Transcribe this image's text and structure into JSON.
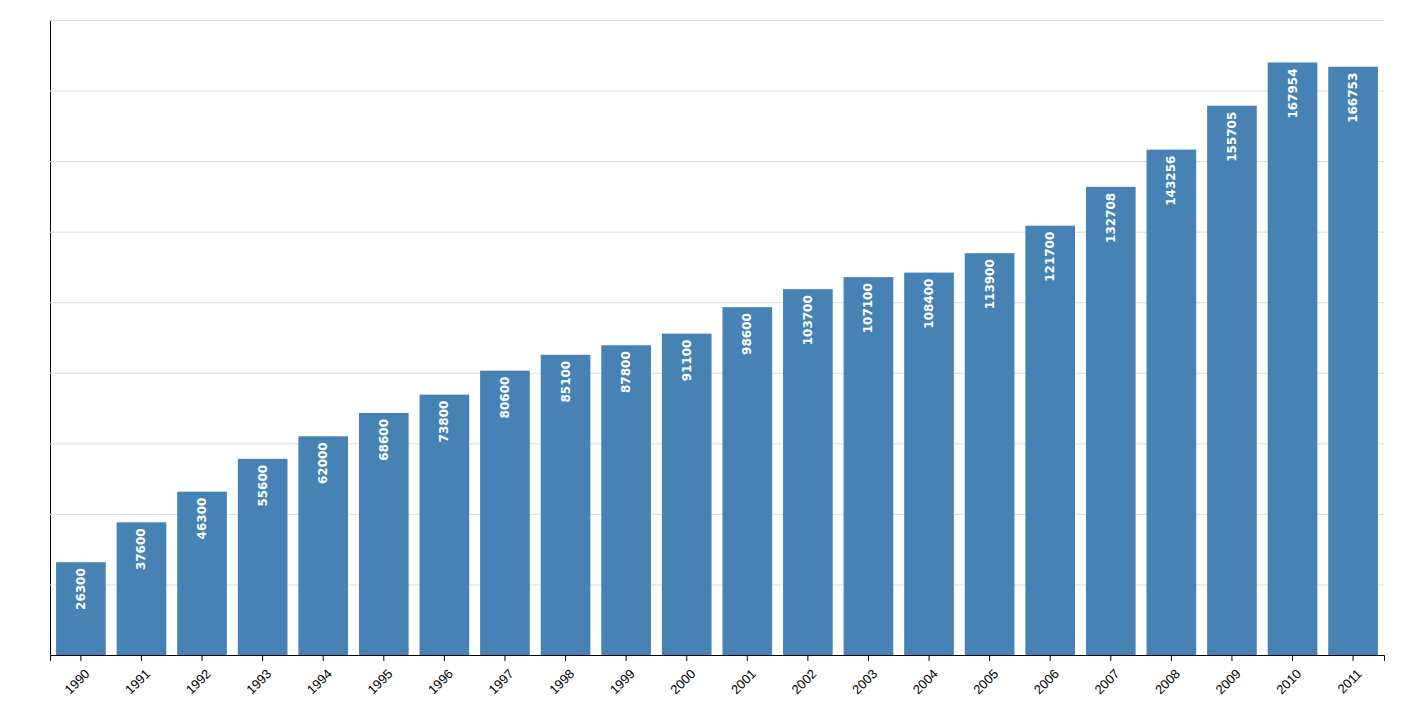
{
  "chart_data": {
    "type": "bar",
    "categories": [
      "1990",
      "1991",
      "1992",
      "1993",
      "1994",
      "1995",
      "1996",
      "1997",
      "1998",
      "1999",
      "2000",
      "2001",
      "2002",
      "2003",
      "2004",
      "2005",
      "2006",
      "2007",
      "2008",
      "2009",
      "2010",
      "2011"
    ],
    "values": [
      26300,
      37600,
      46300,
      55600,
      62000,
      68600,
      73800,
      80600,
      85100,
      87800,
      91100,
      98600,
      103700,
      107100,
      108400,
      113900,
      121700,
      132708,
      143256,
      155705,
      167954,
      166753
    ],
    "ylim": [
      0,
      180000
    ],
    "yticks": [
      0,
      20000,
      40000,
      60000,
      80000,
      100000,
      120000,
      140000,
      160000,
      180000
    ],
    "grid": true,
    "data_labels": true,
    "tick_labels": "x"
  }
}
